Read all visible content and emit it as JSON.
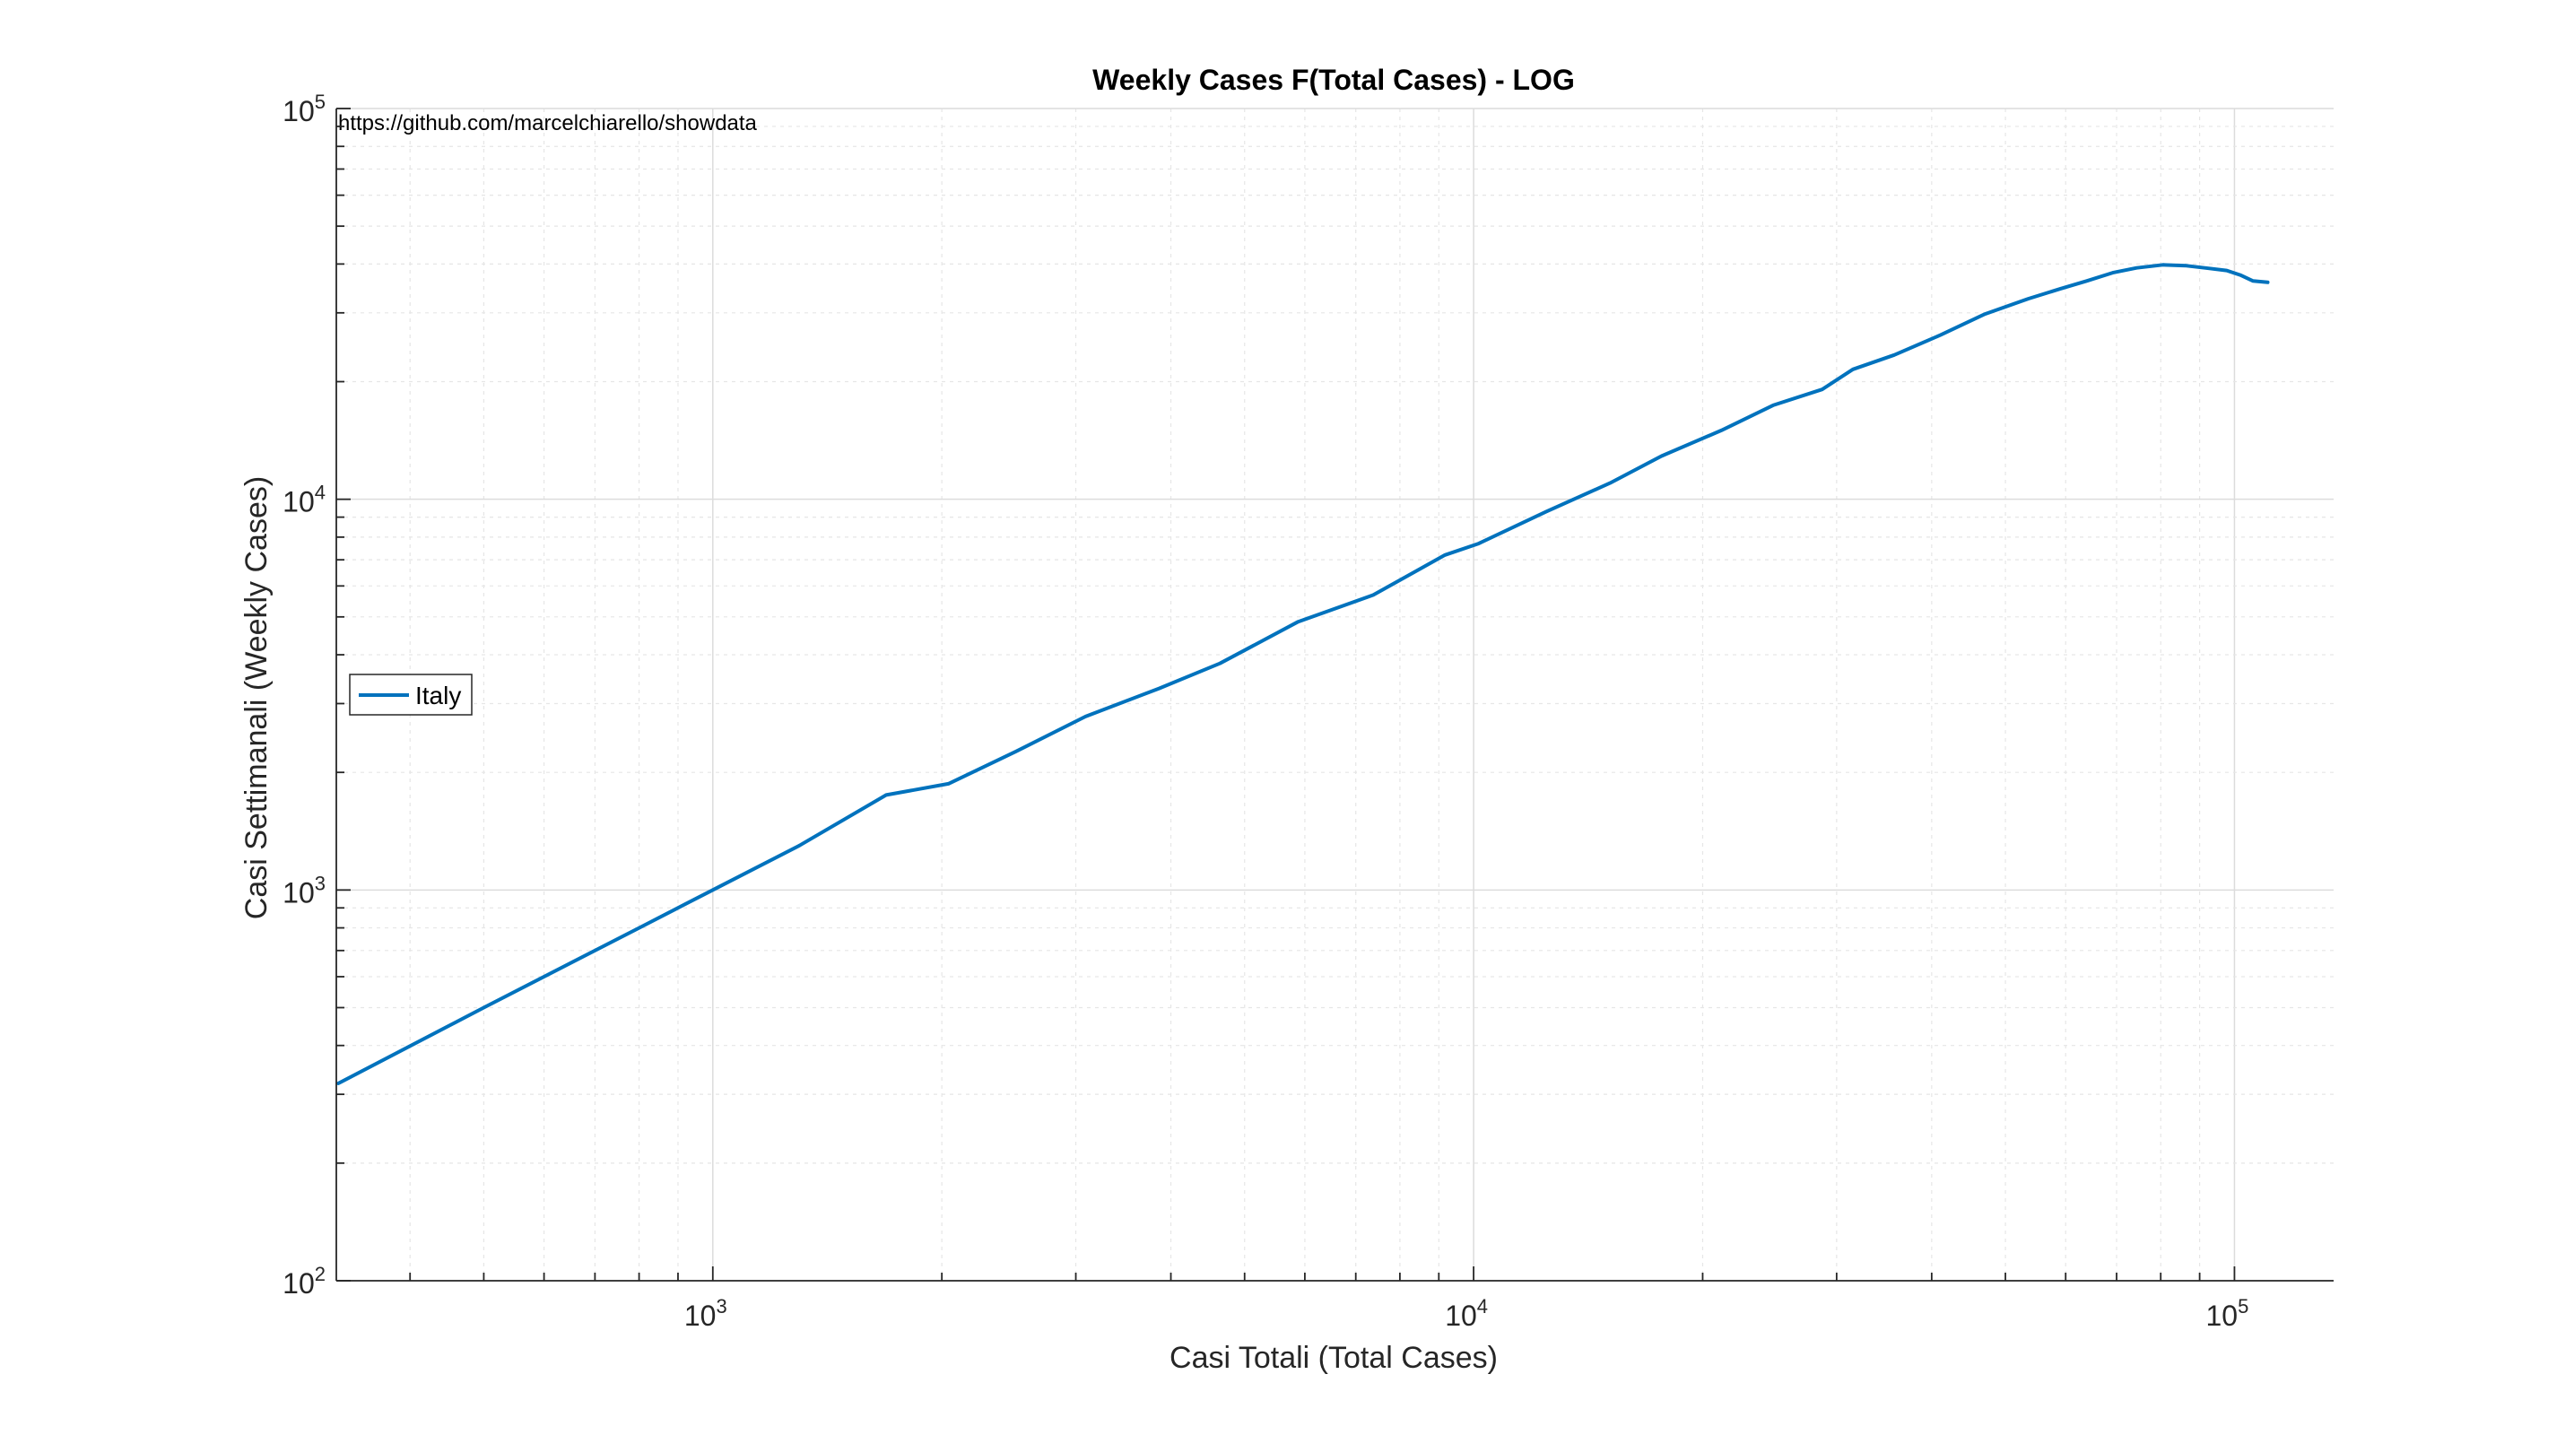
{
  "chart_data": {
    "type": "line",
    "title": "Weekly Cases F(Total Cases) - LOG",
    "xlabel": "Casi Totali (Total Cases)",
    "ylabel": "Casi Settimanali (Weekly Cases)",
    "annotation": "https://github.com/marcelchiarello/showdata",
    "x_scale": "log",
    "y_scale": "log",
    "xlim": [
      320,
      135000
    ],
    "ylim": [
      100,
      100000
    ],
    "x_ticks": [
      {
        "base": "10",
        "exp": "3",
        "value": 1000
      },
      {
        "base": "10",
        "exp": "4",
        "value": 10000
      },
      {
        "base": "10",
        "exp": "5",
        "value": 100000
      }
    ],
    "y_ticks": [
      {
        "base": "10",
        "exp": "2",
        "value": 100
      },
      {
        "base": "10",
        "exp": "3",
        "value": 1000
      },
      {
        "base": "10",
        "exp": "4",
        "value": 10000
      },
      {
        "base": "10",
        "exp": "5",
        "value": 100000
      }
    ],
    "grid": true,
    "legend_position": "middle-left",
    "series": [
      {
        "name": "Italy",
        "color": "#0072BD",
        "x": [
          322,
          500,
          800,
          1000,
          1300,
          1690,
          2040,
          2500,
          3090,
          3860,
          4640,
          5880,
          7380,
          9170,
          10150,
          12460,
          15110,
          17660,
          21160,
          24750,
          28710,
          31510,
          35710,
          41040,
          47020,
          53580,
          59140,
          63930,
          69180,
          74390,
          80540,
          86500,
          92470,
          97690,
          101740,
          105790,
          110570
        ],
        "y": [
          320,
          500,
          800,
          1000,
          1300,
          1750,
          1870,
          2260,
          2780,
          3280,
          3800,
          4860,
          5690,
          7200,
          7700,
          9300,
          11000,
          12900,
          15000,
          17400,
          19100,
          21500,
          23400,
          26300,
          29800,
          32600,
          34600,
          36200,
          38000,
          39100,
          39800,
          39600,
          39000,
          38500,
          37500,
          36200,
          35900
        ]
      }
    ]
  }
}
